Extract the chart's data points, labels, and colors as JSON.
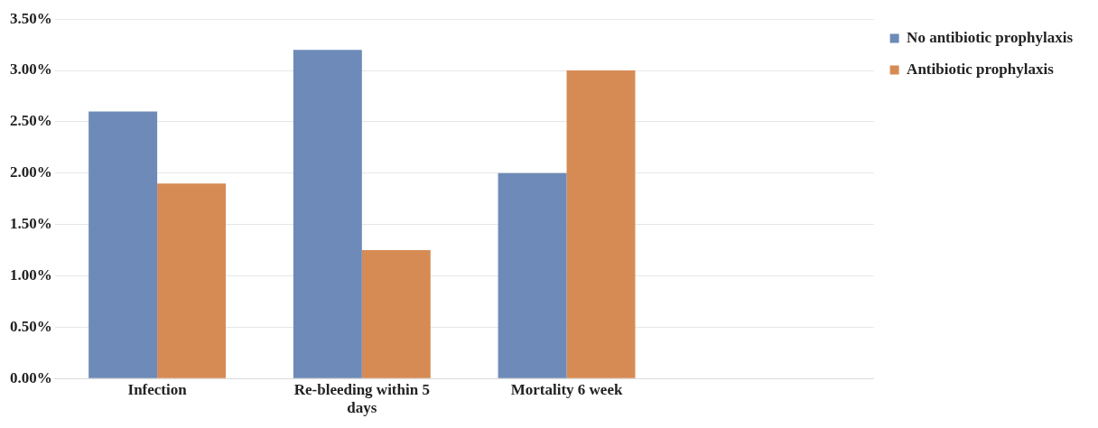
{
  "chart_data": {
    "type": "bar",
    "categories": [
      "Infection",
      "Re-bleeding within 5 days",
      "Mortality 6 week",
      null
    ],
    "series": [
      {
        "name": "No antibiotic prophylaxis",
        "color": "#6d8ab8",
        "values": [
          2.6,
          3.2,
          2.0,
          null
        ]
      },
      {
        "name": "Antibiotic prophylaxis",
        "color": "#d68b55",
        "values": [
          1.9,
          1.25,
          3.0,
          null
        ]
      }
    ],
    "ylim": [
      0,
      3.5
    ],
    "yticks": [
      {
        "value": 0,
        "label": "0.00%"
      },
      {
        "value": 0.5,
        "label": "0.50%"
      },
      {
        "value": 1,
        "label": "1.00%"
      },
      {
        "value": 1.5,
        "label": "1.50%"
      },
      {
        "value": 2,
        "label": "2.00%"
      },
      {
        "value": 2.5,
        "label": "2.50%"
      },
      {
        "value": 3,
        "label": "3.00%"
      },
      {
        "value": 3.5,
        "label": "3.50%"
      }
    ],
    "grid": "y",
    "legend": "top right"
  }
}
